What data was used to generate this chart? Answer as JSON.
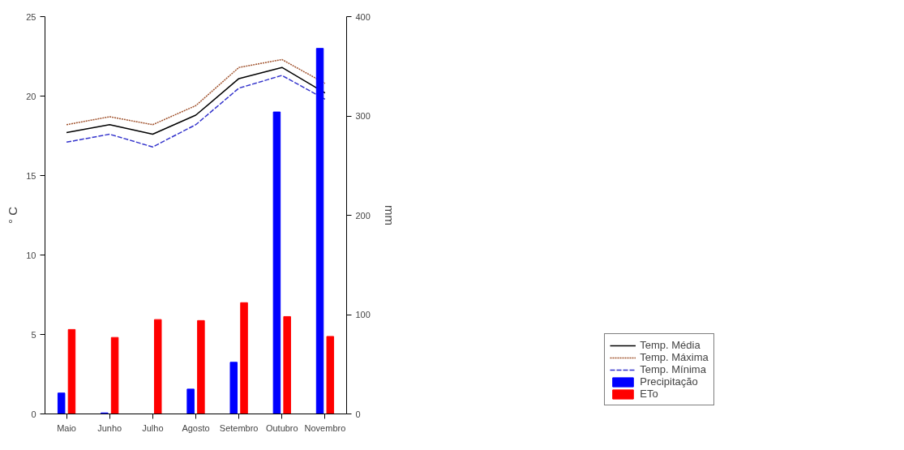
{
  "chart_data": {
    "type": "line",
    "categories": [
      "Maio",
      "Junho",
      "Julho",
      "Agosto",
      "Setembro",
      "Outubro",
      "Novembro"
    ],
    "ylabel": "° C",
    "y2label": "mm",
    "ylim": [
      0,
      25
    ],
    "yticks": [
      0,
      5,
      10,
      15,
      20,
      25
    ],
    "y2lim": [
      0,
      400
    ],
    "y2ticks": [
      0,
      100,
      200,
      300,
      400
    ],
    "grid": false,
    "legend": "right",
    "series": [
      {
        "name": "Temp. Média",
        "line_style": "solid",
        "color": "#000000",
        "values": [
          17.7,
          18.2,
          17.6,
          18.8,
          21.1,
          21.8,
          20.2
        ]
      },
      {
        "name": "Temp. Máxima",
        "line_style": "dotted",
        "color": "#a0522d",
        "values": [
          18.2,
          18.7,
          18.2,
          19.4,
          21.8,
          22.3,
          20.8
        ]
      },
      {
        "name": "Temp. Mínima",
        "line_style": "dashed",
        "color": "#3333cc",
        "values": [
          17.1,
          17.6,
          16.8,
          18.2,
          20.5,
          21.3,
          19.8
        ]
      },
      {
        "name": "Precipitação",
        "type": "bar",
        "axis": "y2",
        "color": "#0000ff",
        "values": [
          21,
          1,
          0,
          25,
          52,
          304,
          368
        ]
      },
      {
        "name": "ETo",
        "type": "bar",
        "axis": "y2",
        "color": "#ff0000",
        "values": [
          85,
          77,
          95,
          94,
          112,
          98,
          78
        ]
      }
    ]
  }
}
